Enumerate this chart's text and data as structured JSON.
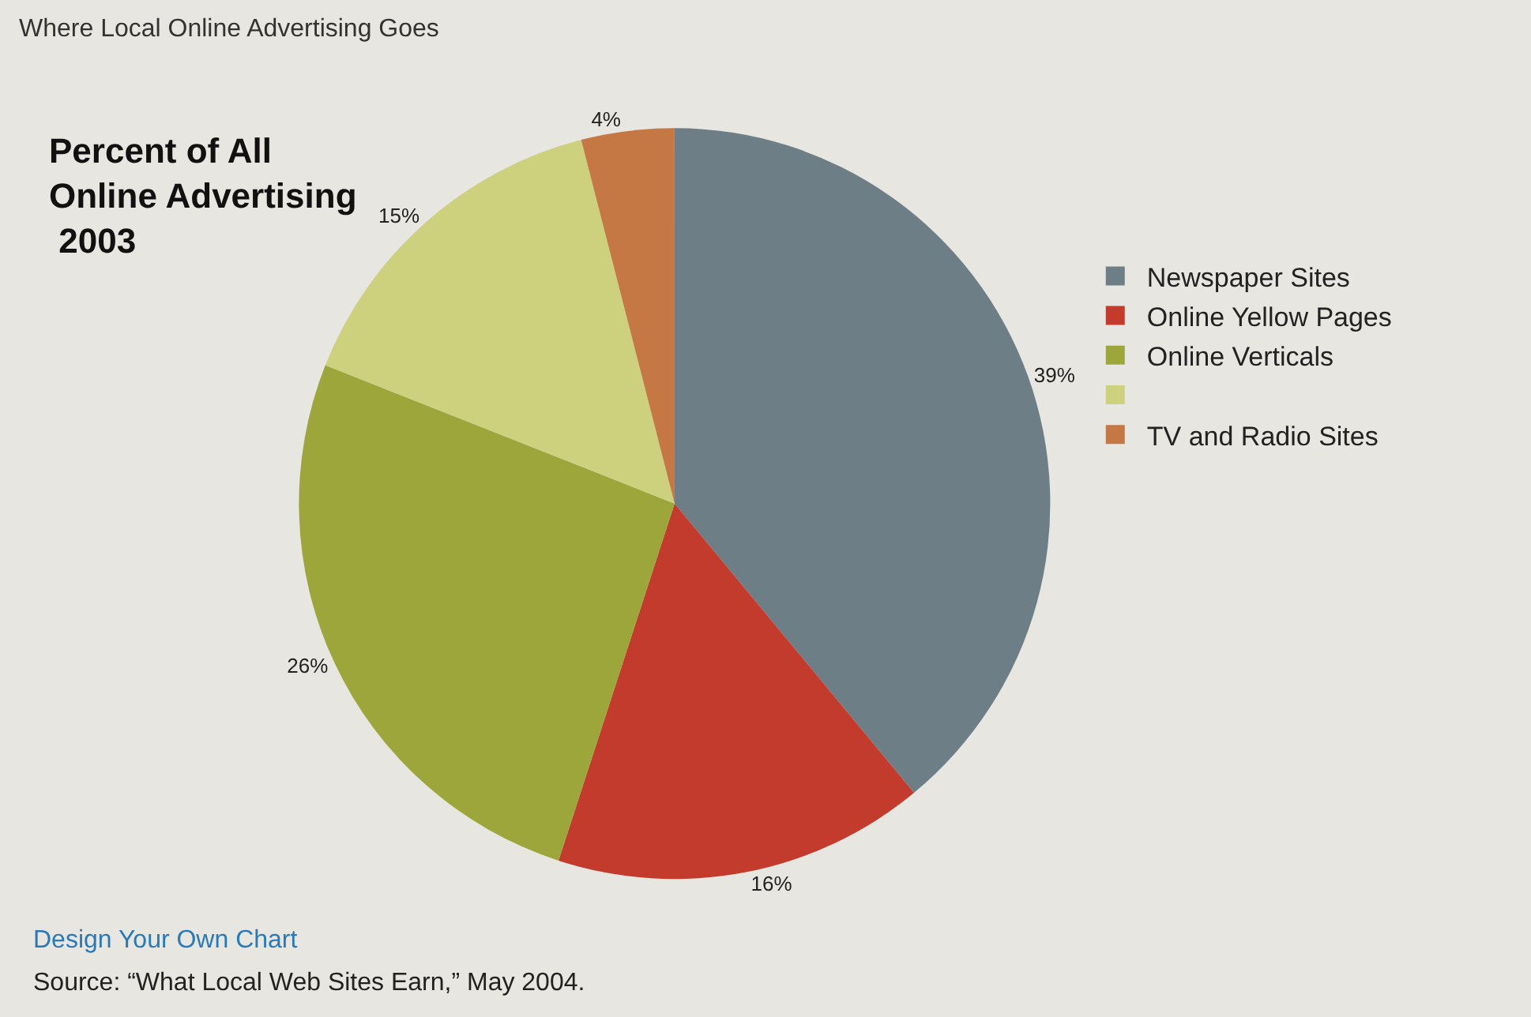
{
  "chart_data": {
    "type": "pie",
    "title": "Where Local Online Advertising Goes",
    "subtitle": "Percent of All\nOnline Advertising\n 2003",
    "categories": [
      "Newspaper Sites",
      "Online Yellow Pages",
      "Online Verticals",
      null,
      "TV and Radio Sites"
    ],
    "values": [
      39,
      16,
      26,
      15,
      4
    ],
    "colors": [
      "#6e7e87",
      "#c23b2c",
      "#9ca63a",
      "#cdd17e",
      "#c57744"
    ],
    "value_labels": [
      "39%",
      "16%",
      "26%",
      "15%",
      "4%"
    ],
    "legend": "right",
    "annotations": [
      "Design Your Own Chart",
      "Source: “What Local Web Sites Earn,” May 2004."
    ]
  }
}
